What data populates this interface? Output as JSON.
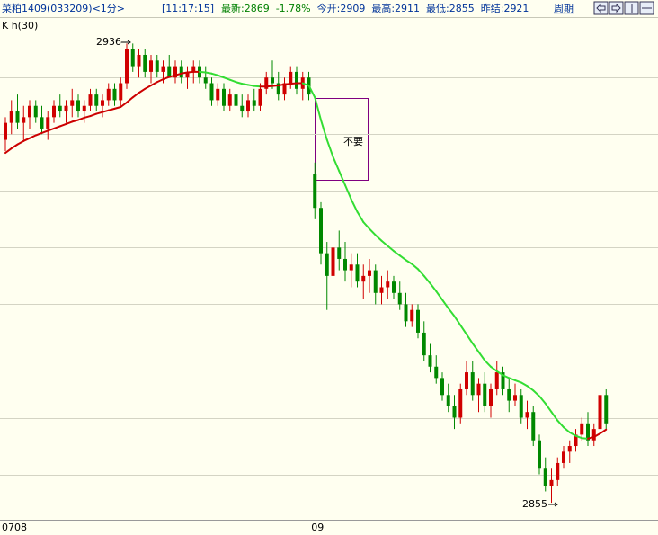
{
  "header": {
    "symbol": "菜粕1409(033209)<1分>",
    "time": "[11:17:15]",
    "fields": [
      "最新:2869",
      "-1.78%",
      "今开:2909",
      "最高:2911",
      "最低:2855",
      "昨结:2921"
    ],
    "period_button": "周期",
    "indicator_label": "K  h(30)"
  },
  "chart_data": {
    "type": "candlestick",
    "categories": [
      "0708",
      null,
      null,
      null,
      null,
      null,
      null,
      null,
      null,
      null,
      null,
      null,
      null,
      null,
      null,
      null,
      null,
      null,
      null,
      null,
      null,
      null,
      null,
      null,
      null,
      null,
      null,
      null,
      null,
      null,
      null,
      null,
      null,
      null,
      null,
      null,
      null,
      null,
      null,
      null,
      null,
      null,
      null,
      null,
      null,
      null,
      null,
      null,
      null,
      null,
      null,
      "09",
      null,
      null,
      null,
      null,
      null,
      null,
      null,
      null,
      null,
      null,
      null,
      null,
      null,
      null,
      null,
      null,
      null,
      null,
      null,
      null,
      null,
      null,
      null,
      null,
      null,
      null,
      null,
      null,
      null,
      null,
      null,
      null,
      null,
      null,
      null,
      null,
      null,
      null,
      null,
      null,
      null,
      null,
      null,
      null,
      null,
      null,
      null,
      null
    ],
    "ohlc": [
      [
        2919,
        2923,
        2917,
        2922
      ],
      [
        2922,
        2926,
        2920,
        2924
      ],
      [
        2924,
        2927,
        2921,
        2922
      ],
      [
        2922,
        2925,
        2919,
        2923
      ],
      [
        2923,
        2926,
        2921,
        2925
      ],
      [
        2925,
        2926,
        2922,
        2923
      ],
      [
        2923,
        2925,
        2920,
        2921
      ],
      [
        2921,
        2924,
        2919,
        2923
      ],
      [
        2923,
        2926,
        2922,
        2925
      ],
      [
        2925,
        2927,
        2923,
        2924
      ],
      [
        2924,
        2926,
        2922,
        2925
      ],
      [
        2925,
        2928,
        2923,
        2926
      ],
      [
        2926,
        2927,
        2923,
        2924
      ],
      [
        2924,
        2926,
        2922,
        2925
      ],
      [
        2925,
        2928,
        2924,
        2927
      ],
      [
        2927,
        2928,
        2924,
        2925
      ],
      [
        2925,
        2927,
        2923,
        2926
      ],
      [
        2926,
        2929,
        2925,
        2928
      ],
      [
        2928,
        2929,
        2925,
        2926
      ],
      [
        2926,
        2930,
        2925,
        2929
      ],
      [
        2929,
        2936,
        2928,
        2935
      ],
      [
        2935,
        2936,
        2931,
        2932
      ],
      [
        2932,
        2935,
        2930,
        2934
      ],
      [
        2934,
        2935,
        2930,
        2931
      ],
      [
        2931,
        2934,
        2929,
        2933
      ],
      [
        2933,
        2934,
        2930,
        2931
      ],
      [
        2931,
        2933,
        2929,
        2932
      ],
      [
        2932,
        2934,
        2930,
        2930
      ],
      [
        2930,
        2933,
        2929,
        2932
      ],
      [
        2932,
        2933,
        2929,
        2930
      ],
      [
        2930,
        2932,
        2928,
        2931
      ],
      [
        2931,
        2933,
        2929,
        2932
      ],
      [
        2932,
        2933,
        2929,
        2930
      ],
      [
        2930,
        2932,
        2928,
        2929
      ],
      [
        2929,
        2930,
        2925,
        2926
      ],
      [
        2926,
        2929,
        2925,
        2928
      ],
      [
        2928,
        2929,
        2924,
        2925
      ],
      [
        2925,
        2928,
        2924,
        2927
      ],
      [
        2927,
        2928,
        2924,
        2925
      ],
      [
        2925,
        2927,
        2923,
        2924
      ],
      [
        2924,
        2927,
        2923,
        2926
      ],
      [
        2926,
        2928,
        2924,
        2925
      ],
      [
        2925,
        2929,
        2924,
        2928
      ],
      [
        2928,
        2931,
        2927,
        2930
      ],
      [
        2930,
        2933,
        2928,
        2929
      ],
      [
        2929,
        2931,
        2926,
        2927
      ],
      [
        2927,
        2930,
        2926,
        2929
      ],
      [
        2929,
        2932,
        2928,
        2931
      ],
      [
        2931,
        2932,
        2927,
        2928
      ],
      [
        2928,
        2931,
        2926,
        2930
      ],
      [
        2930,
        2931,
        2926,
        2927
      ],
      [
        2913,
        2915,
        2905,
        2907
      ],
      [
        2907,
        2908,
        2897,
        2899
      ],
      [
        2899,
        2901,
        2889,
        2895
      ],
      [
        2895,
        2902,
        2894,
        2900
      ],
      [
        2900,
        2903,
        2896,
        2898
      ],
      [
        2898,
        2901,
        2894,
        2896
      ],
      [
        2896,
        2899,
        2893,
        2897
      ],
      [
        2897,
        2899,
        2893,
        2894
      ],
      [
        2894,
        2897,
        2891,
        2895
      ],
      [
        2895,
        2898,
        2892,
        2896
      ],
      [
        2896,
        2897,
        2890,
        2892
      ],
      [
        2892,
        2895,
        2890,
        2893
      ],
      [
        2893,
        2896,
        2891,
        2894
      ],
      [
        2894,
        2895,
        2891,
        2892
      ],
      [
        2892,
        2894,
        2889,
        2890
      ],
      [
        2890,
        2892,
        2886,
        2887
      ],
      [
        2887,
        2890,
        2886,
        2889
      ],
      [
        2889,
        2890,
        2884,
        2885
      ],
      [
        2885,
        2887,
        2880,
        2881
      ],
      [
        2881,
        2883,
        2878,
        2879
      ],
      [
        2879,
        2881,
        2876,
        2877
      ],
      [
        2877,
        2878,
        2873,
        2874
      ],
      [
        2874,
        2876,
        2871,
        2872
      ],
      [
        2872,
        2874,
        2868,
        2870
      ],
      [
        2870,
        2876,
        2869,
        2875
      ],
      [
        2875,
        2880,
        2874,
        2878
      ],
      [
        2878,
        2880,
        2873,
        2874
      ],
      [
        2874,
        2877,
        2871,
        2876
      ],
      [
        2876,
        2878,
        2871,
        2872
      ],
      [
        2872,
        2876,
        2870,
        2875
      ],
      [
        2875,
        2880,
        2874,
        2878
      ],
      [
        2878,
        2879,
        2874,
        2875
      ],
      [
        2875,
        2877,
        2871,
        2873
      ],
      [
        2873,
        2876,
        2872,
        2874
      ],
      [
        2874,
        2875,
        2869,
        2870
      ],
      [
        2870,
        2873,
        2868,
        2871
      ],
      [
        2871,
        2872,
        2865,
        2866
      ],
      [
        2866,
        2867,
        2860,
        2861
      ],
      [
        2861,
        2863,
        2857,
        2858
      ],
      [
        2858,
        2861,
        2855,
        2859
      ],
      [
        2859,
        2863,
        2858,
        2862
      ],
      [
        2862,
        2865,
        2861,
        2864
      ],
      [
        2864,
        2866,
        2862,
        2865
      ],
      [
        2865,
        2868,
        2864,
        2867
      ],
      [
        2867,
        2870,
        2866,
        2869
      ],
      [
        2869,
        2871,
        2865,
        2866
      ],
      [
        2866,
        2869,
        2865,
        2868
      ],
      [
        2868,
        2876,
        2867,
        2874
      ],
      [
        2874,
        2875,
        2868,
        2869
      ]
    ],
    "up_color": "#d00000",
    "down_color": "#008800",
    "ma": {
      "values": [
        2916.7,
        2917.5,
        2918.2,
        2918.8,
        2919.3,
        2919.8,
        2920.2,
        2920.6,
        2921.0,
        2921.4,
        2921.8,
        2922.2,
        2922.5,
        2922.9,
        2923.2,
        2923.6,
        2923.9,
        2924.2,
        2924.5,
        2924.8,
        2925.6,
        2926.5,
        2927.3,
        2928.0,
        2928.6,
        2929.2,
        2929.7,
        2930.1,
        2930.4,
        2930.7,
        2930.9,
        2931.0,
        2931.0,
        2930.9,
        2930.7,
        2930.4,
        2930.0,
        2929.6,
        2929.2,
        2928.9,
        2928.7,
        2928.5,
        2928.4,
        2928.4,
        2928.5,
        2928.6,
        2928.8,
        2928.9,
        2929.0,
        2929.0,
        2928.6,
        2926.5,
        2922.5,
        2919.0,
        2916.0,
        2913.5,
        2911.0,
        2908.5,
        2906.3,
        2904.5,
        2903.3,
        2902.2,
        2901.2,
        2900.3,
        2899.4,
        2898.6,
        2897.8,
        2897.1,
        2896.2,
        2895.0,
        2893.7,
        2892.3,
        2890.8,
        2889.3,
        2887.9,
        2886.3,
        2884.7,
        2883.1,
        2881.6,
        2880.1,
        2879.0,
        2878.2,
        2877.5,
        2877.0,
        2876.6,
        2876.2,
        2875.6,
        2874.8,
        2873.8,
        2872.5,
        2871.0,
        2869.5,
        2868.3,
        2867.4,
        2866.8,
        2866.4,
        2866.3,
        2866.6,
        2867.2,
        2867.9
      ],
      "up_color": "#cc0000",
      "down_color": "#33dd33"
    },
    "ylim": [
      2852,
      2940.5
    ],
    "yticks": [
      2860,
      2870,
      2880,
      2890,
      2900,
      2910,
      2920,
      2930
    ],
    "grid": true,
    "annotations": [
      "2936",
      "2855",
      "不要"
    ]
  }
}
